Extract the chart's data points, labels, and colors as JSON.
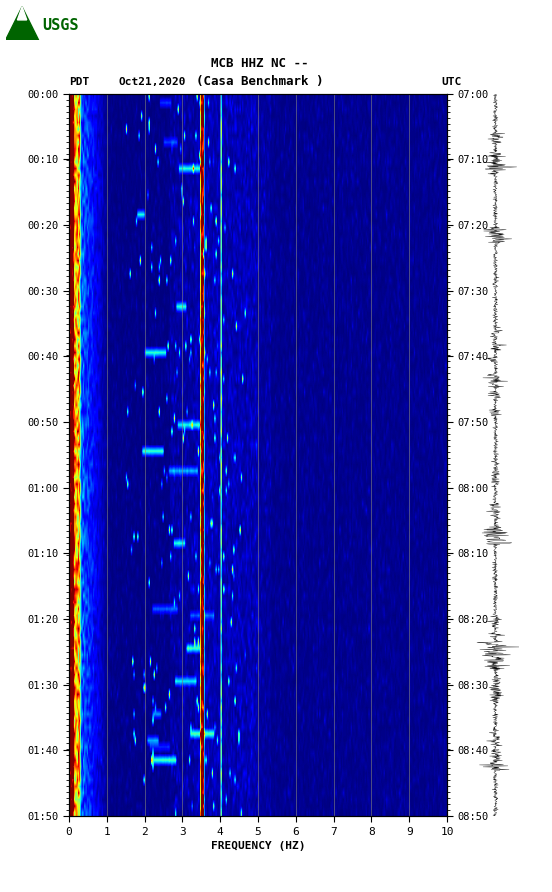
{
  "title_line1": "MCB HHZ NC --",
  "title_line2": "(Casa Benchmark )",
  "label_left": "PDT",
  "label_date": "Oct21,2020",
  "label_right": "UTC",
  "freq_min": 0,
  "freq_max": 10,
  "freq_label": "FREQUENCY (HZ)",
  "freq_ticks": [
    0,
    1,
    2,
    3,
    4,
    5,
    6,
    7,
    8,
    9,
    10
  ],
  "left_time_labels": [
    "00:00",
    "00:10",
    "00:20",
    "00:30",
    "00:40",
    "00:50",
    "01:00",
    "01:10",
    "01:20",
    "01:30",
    "01:40",
    "01:50"
  ],
  "right_time_labels": [
    "07:00",
    "07:10",
    "07:20",
    "07:30",
    "07:40",
    "07:50",
    "08:00",
    "08:10",
    "08:20",
    "08:30",
    "08:40",
    "08:50"
  ],
  "vertical_lines_freq": [
    1.0,
    2.0,
    3.0,
    4.0,
    5.0,
    6.0,
    7.0,
    8.0,
    9.0
  ],
  "fig_width": 5.52,
  "fig_height": 8.92,
  "n_time": 110,
  "n_freq": 300
}
